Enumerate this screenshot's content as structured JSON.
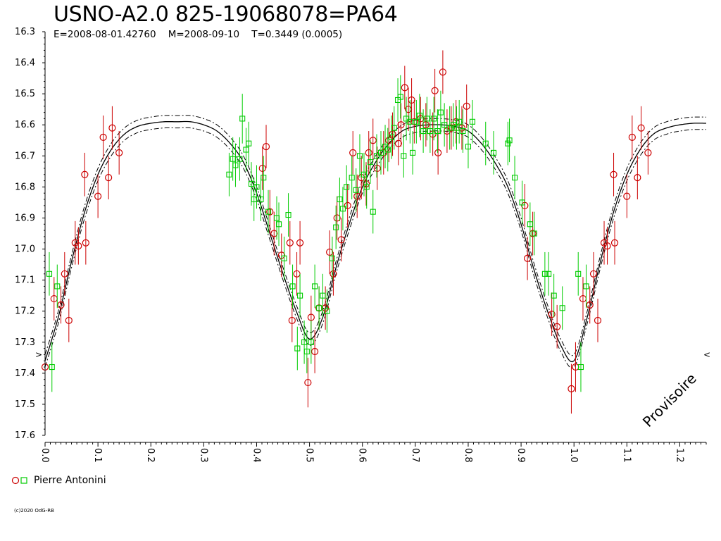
{
  "chart_data": {
    "type": "scatter",
    "title": "USNO-A2.0 825-19068078=PA64",
    "subtitle": "E=2008-08-01.42760    M=2008-09-10    T=0.3449 (0.0005)",
    "xlabel": "",
    "ylabel": "",
    "xlim": [
      -0.01,
      1.25
    ],
    "ylim": [
      16.3,
      17.6
    ],
    "y_inverted": true,
    "grid": false,
    "x_ticks": [
      "0.0",
      "0.1",
      "0.2",
      "0.3",
      "0.4",
      "0.5",
      "0.6",
      "0.7",
      "0.8",
      "0.9",
      "1.0",
      "1.1",
      "1.2"
    ],
    "y_ticks": [
      "16.3",
      "16.4",
      "16.5",
      "16.6",
      "16.7",
      "16.8",
      "16.9",
      "17.0",
      "17.1",
      "17.2",
      "17.3",
      "17.4",
      "17.5",
      "17.6"
    ],
    "model_curve": {
      "style": "solid with dash-dot envelope",
      "x": [
        0.0,
        0.025,
        0.05,
        0.075,
        0.1,
        0.125,
        0.15,
        0.175,
        0.2,
        0.225,
        0.25,
        0.275,
        0.3,
        0.325,
        0.35,
        0.375,
        0.4,
        0.425,
        0.45,
        0.475,
        0.5,
        0.525,
        0.55,
        0.575,
        0.6,
        0.625,
        0.65,
        0.675,
        0.7,
        0.725,
        0.75,
        0.775,
        0.8,
        0.825,
        0.85,
        0.875,
        0.9,
        0.925,
        0.95,
        0.975,
        1.0,
        1.025,
        1.05,
        1.075,
        1.1,
        1.125,
        1.15,
        1.175,
        1.2,
        1.225,
        1.25
      ],
      "y": [
        17.36,
        17.22,
        17.04,
        16.88,
        16.76,
        16.68,
        16.63,
        16.605,
        16.595,
        16.59,
        16.59,
        16.59,
        16.6,
        16.62,
        16.66,
        16.72,
        16.82,
        16.95,
        17.08,
        17.2,
        17.29,
        17.22,
        17.06,
        16.92,
        16.8,
        16.72,
        16.66,
        16.62,
        16.605,
        16.6,
        16.6,
        16.605,
        16.62,
        16.66,
        16.72,
        16.8,
        16.92,
        17.07,
        17.2,
        17.31,
        17.36,
        17.22,
        17.04,
        16.88,
        16.76,
        16.68,
        16.63,
        16.61,
        16.6,
        16.595,
        16.595
      ],
      "envelope": 0.02
    },
    "series": [
      {
        "name": "Pierre Antonini",
        "marker": "circle",
        "color": "#cc0000",
        "points": [
          [
            0.0,
            17.38,
            0.08
          ],
          [
            0.017,
            17.16,
            0.07
          ],
          [
            0.03,
            17.18,
            0.06
          ],
          [
            0.037,
            17.08,
            0.07
          ],
          [
            0.045,
            17.23,
            0.07
          ],
          [
            0.057,
            16.98,
            0.07
          ],
          [
            0.063,
            16.99,
            0.06
          ],
          [
            0.075,
            16.76,
            0.07
          ],
          [
            0.077,
            16.98,
            0.07
          ],
          [
            0.1,
            16.83,
            0.07
          ],
          [
            0.11,
            16.64,
            0.07
          ],
          [
            0.12,
            16.77,
            0.07
          ],
          [
            0.127,
            16.61,
            0.07
          ],
          [
            0.14,
            16.69,
            0.07
          ],
          [
            0.411,
            16.74,
            0.07
          ],
          [
            0.418,
            16.67,
            0.07
          ],
          [
            0.425,
            16.88,
            0.07
          ],
          [
            0.433,
            16.95,
            0.07
          ],
          [
            0.447,
            17.02,
            0.07
          ],
          [
            0.463,
            16.98,
            0.07
          ],
          [
            0.467,
            17.23,
            0.07
          ],
          [
            0.476,
            17.08,
            0.07
          ],
          [
            0.482,
            16.98,
            0.07
          ],
          [
            0.497,
            17.43,
            0.08
          ],
          [
            0.503,
            17.22,
            0.07
          ],
          [
            0.51,
            17.33,
            0.07
          ],
          [
            0.518,
            17.19,
            0.07
          ],
          [
            0.53,
            17.19,
            0.07
          ],
          [
            0.538,
            17.01,
            0.07
          ],
          [
            0.545,
            17.08,
            0.07
          ],
          [
            0.552,
            16.9,
            0.07
          ],
          [
            0.56,
            16.97,
            0.07
          ],
          [
            0.572,
            16.86,
            0.07
          ],
          [
            0.582,
            16.69,
            0.07
          ],
          [
            0.59,
            16.83,
            0.07
          ],
          [
            0.598,
            16.77,
            0.07
          ],
          [
            0.607,
            16.79,
            0.07
          ],
          [
            0.612,
            16.69,
            0.07
          ],
          [
            0.62,
            16.65,
            0.07
          ],
          [
            0.628,
            16.74,
            0.07
          ],
          [
            0.64,
            16.69,
            0.07
          ],
          [
            0.65,
            16.65,
            0.07
          ],
          [
            0.657,
            16.63,
            0.07
          ],
          [
            0.668,
            16.66,
            0.07
          ],
          [
            0.673,
            16.6,
            0.07
          ],
          [
            0.68,
            16.48,
            0.07
          ],
          [
            0.687,
            16.55,
            0.07
          ],
          [
            0.693,
            16.52,
            0.07
          ],
          [
            0.698,
            16.59,
            0.07
          ],
          [
            0.71,
            16.58,
            0.07
          ],
          [
            0.72,
            16.6,
            0.07
          ],
          [
            0.733,
            16.63,
            0.07
          ],
          [
            0.737,
            16.49,
            0.07
          ],
          [
            0.743,
            16.69,
            0.07
          ],
          [
            0.752,
            16.43,
            0.07
          ],
          [
            0.76,
            16.62,
            0.07
          ],
          [
            0.768,
            16.61,
            0.07
          ],
          [
            0.777,
            16.59,
            0.07
          ],
          [
            0.788,
            16.61,
            0.07
          ],
          [
            0.797,
            16.54,
            0.07
          ],
          [
            0.907,
            16.86,
            0.07
          ],
          [
            0.912,
            17.03,
            0.07
          ],
          [
            0.922,
            16.95,
            0.07
          ],
          [
            0.958,
            17.21,
            0.07
          ],
          [
            0.968,
            17.25,
            0.07
          ],
          [
            0.995,
            17.45,
            0.08
          ],
          [
            1.003,
            17.38,
            0.08
          ],
          [
            1.017,
            17.16,
            0.07
          ],
          [
            1.03,
            17.18,
            0.06
          ],
          [
            1.037,
            17.08,
            0.07
          ],
          [
            1.045,
            17.23,
            0.07
          ],
          [
            1.057,
            16.98,
            0.07
          ],
          [
            1.063,
            16.99,
            0.06
          ],
          [
            1.075,
            16.76,
            0.07
          ],
          [
            1.077,
            16.98,
            0.07
          ],
          [
            1.1,
            16.83,
            0.07
          ],
          [
            1.11,
            16.64,
            0.07
          ],
          [
            1.12,
            16.77,
            0.07
          ],
          [
            1.127,
            16.61,
            0.07
          ],
          [
            1.14,
            16.69,
            0.07
          ]
        ]
      },
      {
        "name": "Pierre Antonini",
        "marker": "square",
        "color": "#00cc00",
        "points": [
          [
            0.008,
            17.08,
            0.07
          ],
          [
            0.013,
            17.38,
            0.08
          ],
          [
            0.023,
            17.12,
            0.07
          ],
          [
            0.348,
            16.76,
            0.07
          ],
          [
            0.355,
            16.71,
            0.07
          ],
          [
            0.36,
            16.73,
            0.07
          ],
          [
            0.368,
            16.71,
            0.07
          ],
          [
            0.373,
            16.58,
            0.08
          ],
          [
            0.38,
            16.68,
            0.07
          ],
          [
            0.385,
            16.66,
            0.07
          ],
          [
            0.39,
            16.79,
            0.07
          ],
          [
            0.395,
            16.84,
            0.07
          ],
          [
            0.4,
            16.8,
            0.07
          ],
          [
            0.408,
            16.84,
            0.07
          ],
          [
            0.413,
            16.77,
            0.07
          ],
          [
            0.422,
            16.88,
            0.07
          ],
          [
            0.438,
            16.9,
            0.07
          ],
          [
            0.442,
            16.92,
            0.07
          ],
          [
            0.452,
            17.03,
            0.07
          ],
          [
            0.46,
            16.89,
            0.07
          ],
          [
            0.468,
            17.12,
            0.07
          ],
          [
            0.477,
            17.32,
            0.07
          ],
          [
            0.482,
            17.15,
            0.07
          ],
          [
            0.49,
            17.3,
            0.07
          ],
          [
            0.495,
            17.33,
            0.07
          ],
          [
            0.503,
            17.3,
            0.07
          ],
          [
            0.51,
            17.12,
            0.07
          ],
          [
            0.518,
            17.19,
            0.07
          ],
          [
            0.525,
            17.15,
            0.07
          ],
          [
            0.533,
            17.2,
            0.07
          ],
          [
            0.543,
            17.03,
            0.07
          ],
          [
            0.55,
            16.93,
            0.07
          ],
          [
            0.557,
            16.84,
            0.07
          ],
          [
            0.563,
            16.87,
            0.07
          ],
          [
            0.57,
            16.8,
            0.07
          ],
          [
            0.58,
            16.77,
            0.07
          ],
          [
            0.588,
            16.81,
            0.07
          ],
          [
            0.595,
            16.7,
            0.07
          ],
          [
            0.603,
            16.76,
            0.07
          ],
          [
            0.608,
            16.8,
            0.07
          ],
          [
            0.615,
            16.72,
            0.07
          ],
          [
            0.62,
            16.88,
            0.07
          ],
          [
            0.627,
            16.7,
            0.07
          ],
          [
            0.635,
            16.69,
            0.07
          ],
          [
            0.643,
            16.67,
            0.07
          ],
          [
            0.648,
            16.68,
            0.07
          ],
          [
            0.655,
            16.64,
            0.07
          ],
          [
            0.66,
            16.61,
            0.07
          ],
          [
            0.667,
            16.52,
            0.07
          ],
          [
            0.672,
            16.51,
            0.07
          ],
          [
            0.678,
            16.7,
            0.07
          ],
          [
            0.683,
            16.58,
            0.07
          ],
          [
            0.69,
            16.59,
            0.07
          ],
          [
            0.695,
            16.69,
            0.07
          ],
          [
            0.702,
            16.59,
            0.07
          ],
          [
            0.708,
            16.57,
            0.07
          ],
          [
            0.715,
            16.62,
            0.07
          ],
          [
            0.722,
            16.58,
            0.07
          ],
          [
            0.728,
            16.62,
            0.07
          ],
          [
            0.735,
            16.58,
            0.07
          ],
          [
            0.742,
            16.62,
            0.07
          ],
          [
            0.748,
            16.56,
            0.07
          ],
          [
            0.755,
            16.6,
            0.07
          ],
          [
            0.765,
            16.61,
            0.07
          ],
          [
            0.772,
            16.6,
            0.07
          ],
          [
            0.778,
            16.61,
            0.07
          ],
          [
            0.783,
            16.59,
            0.07
          ],
          [
            0.79,
            16.62,
            0.07
          ],
          [
            0.8,
            16.67,
            0.07
          ],
          [
            0.808,
            16.59,
            0.07
          ],
          [
            0.833,
            16.66,
            0.07
          ],
          [
            0.848,
            16.69,
            0.07
          ],
          [
            0.875,
            16.66,
            0.07
          ],
          [
            0.878,
            16.65,
            0.07
          ],
          [
            0.888,
            16.77,
            0.07
          ],
          [
            0.902,
            16.85,
            0.07
          ],
          [
            0.917,
            16.92,
            0.07
          ],
          [
            0.925,
            16.95,
            0.07
          ],
          [
            0.945,
            17.08,
            0.07
          ],
          [
            0.952,
            17.08,
            0.07
          ],
          [
            0.962,
            17.15,
            0.07
          ],
          [
            0.978,
            17.19,
            0.07
          ],
          [
            1.008,
            17.08,
            0.07
          ],
          [
            1.013,
            17.38,
            0.08
          ],
          [
            1.023,
            17.12,
            0.07
          ]
        ]
      }
    ],
    "markers_right": ">",
    "legend_position": "bottom-left"
  },
  "legend": {
    "label": "Pierre Antonini"
  },
  "credit": "(c)2020 OdG-RB",
  "watermark": "Provisoire",
  "colors": {
    "red": "#cc0000",
    "green": "#00cc00",
    "axis": "#000000"
  }
}
